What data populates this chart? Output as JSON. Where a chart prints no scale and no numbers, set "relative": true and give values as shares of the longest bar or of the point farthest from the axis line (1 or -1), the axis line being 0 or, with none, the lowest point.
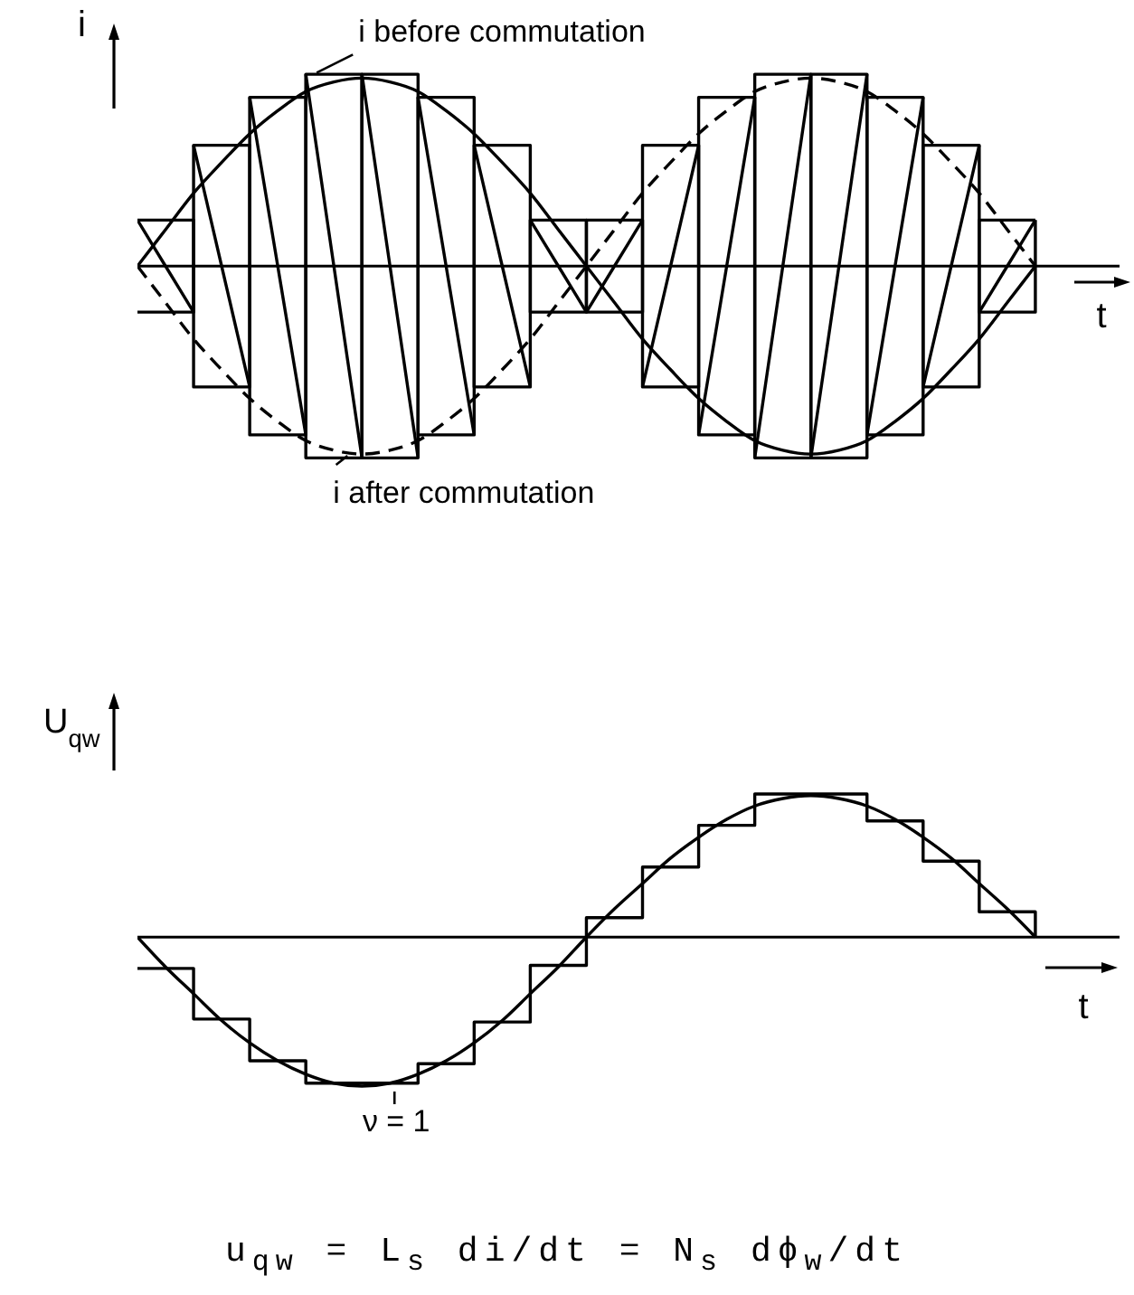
{
  "chart_data": [
    {
      "type": "line",
      "xlabel": "t",
      "ylabel": "i",
      "relative": true,
      "tick_labels": false,
      "categories": [
        null,
        null,
        null,
        null,
        null,
        null,
        null,
        null,
        null,
        null,
        null,
        null,
        null,
        null,
        null,
        null,
        null,
        null,
        null,
        null,
        null,
        null,
        null,
        null,
        null,
        null,
        null,
        null,
        null,
        null,
        null,
        null,
        null,
        null,
        null,
        null
      ],
      "series": [
        {
          "type": "step",
          "color": "#000000",
          "values": [
            0.24,
            0.24,
            -0.63,
            -0.63,
            0.88,
            0.88,
            -1,
            -1,
            1,
            1,
            -0.88,
            -0.88,
            0.63,
            0.63,
            -0.24,
            -0.24,
            0.24,
            0.24,
            -0.63,
            -0.63,
            0.88,
            0.88,
            -1,
            -1,
            1,
            1,
            -0.88,
            -0.88,
            0.63,
            0.63,
            -0.24,
            -0.24,
            0.24,
            null,
            null,
            null
          ]
        },
        {
          "type": "step",
          "color": "#000000",
          "values": [
            -0.24,
            -0.24,
            0.63,
            0.63,
            -0.88,
            -0.88,
            1,
            1,
            -1,
            -1,
            0.88,
            0.88,
            -0.63,
            -0.63,
            0.24,
            0.24,
            -0.24,
            -0.24,
            0.63,
            0.63,
            -0.88,
            -0.88,
            1,
            1,
            -1,
            -1,
            0.88,
            0.88,
            -0.63,
            -0.63,
            0.24,
            0.24,
            0.24,
            null,
            null,
            null
          ]
        },
        {
          "name": "i before commutation",
          "color": "#000000",
          "values": [
            0,
            0.19,
            0.38,
            0.54,
            0.69,
            0.81,
            0.91,
            0.96,
            0.98,
            0.96,
            0.91,
            0.81,
            0.69,
            0.54,
            0.38,
            0.19,
            0,
            -0.19,
            -0.38,
            -0.54,
            -0.69,
            -0.81,
            -0.91,
            -0.96,
            -0.98,
            -0.96,
            -0.91,
            -0.81,
            -0.69,
            -0.54,
            -0.38,
            -0.19,
            0,
            null,
            null,
            null
          ]
        },
        {
          "name": "i after commutation",
          "color": "#000000",
          "line_style": "dashed",
          "values": [
            0,
            -0.19,
            -0.38,
            -0.54,
            -0.69,
            -0.81,
            -0.91,
            -0.96,
            -0.98,
            -0.96,
            -0.91,
            -0.81,
            -0.69,
            -0.54,
            -0.38,
            -0.19,
            0,
            0.19,
            0.38,
            0.54,
            0.69,
            0.81,
            0.91,
            0.96,
            0.98,
            0.96,
            0.91,
            0.81,
            0.69,
            0.54,
            0.38,
            0.19,
            0,
            null,
            null,
            null
          ]
        },
        {
          "color": "#000000",
          "values": [
            0.24,
            0,
            -0.24,
            null,
            0.88,
            0,
            -0.88,
            null,
            1,
            0,
            -1,
            null,
            0.63,
            0,
            -0.63,
            null,
            -0.24,
            0,
            0.24,
            null,
            -0.88,
            0,
            0.88,
            null,
            -1,
            0,
            1,
            null,
            -0.63,
            0,
            0.63,
            null,
            null,
            null,
            null,
            null
          ]
        },
        {
          "color": "#000000",
          "values": [
            null,
            null,
            0.63,
            0,
            -0.63,
            null,
            1,
            0,
            -1,
            null,
            0.88,
            0,
            -0.88,
            null,
            0.24,
            0,
            -0.24,
            null,
            -0.63,
            0,
            0.63,
            null,
            -1,
            0,
            1,
            null,
            -0.88,
            0,
            0.88,
            null,
            -0.24,
            0,
            0.24,
            null,
            null,
            null
          ]
        }
      ]
    },
    {
      "type": "line",
      "xlabel": "t",
      "ylabel": "U$_{qw}$",
      "relative": true,
      "tick_labels": false,
      "categories": [
        null,
        null,
        null,
        null,
        null,
        null,
        null,
        null,
        null,
        null,
        null,
        null,
        null,
        null,
        null,
        null,
        null,
        null,
        null,
        null,
        null,
        null,
        null,
        null,
        null,
        null,
        null,
        null,
        null,
        null,
        null,
        null,
        null,
        null,
        null,
        null
      ],
      "series": [
        {
          "name": "ν = 1",
          "color": "#000000",
          "values": [
            0,
            -0.2,
            -0.38,
            -0.56,
            -0.71,
            -0.83,
            -0.92,
            -0.98,
            -1,
            -0.98,
            -0.92,
            -0.83,
            -0.71,
            -0.56,
            -0.38,
            -0.2,
            0,
            0.19,
            0.36,
            0.53,
            0.67,
            0.79,
            0.88,
            0.93,
            0.95,
            0.93,
            0.88,
            0.79,
            0.67,
            0.53,
            0.36,
            0.19,
            0,
            null,
            null,
            null
          ]
        },
        {
          "type": "step",
          "color": "#000000",
          "values": [
            -0.21,
            -0.21,
            -0.55,
            -0.55,
            -0.83,
            -0.83,
            -0.98,
            -0.98,
            -0.98,
            -0.98,
            -0.85,
            -0.85,
            -0.57,
            -0.57,
            -0.19,
            -0.19,
            0.13,
            0.13,
            0.47,
            0.47,
            0.75,
            0.75,
            0.96,
            0.96,
            0.96,
            0.96,
            0.78,
            0.78,
            0.51,
            0.51,
            0.17,
            0.17,
            0,
            null,
            null,
            null
          ]
        }
      ],
      "annotations": [
        "u$_{qw}$ = L$_{s}$ di/dt = N$_{s}$ dϕ$_{w}$/dt"
      ]
    }
  ]
}
